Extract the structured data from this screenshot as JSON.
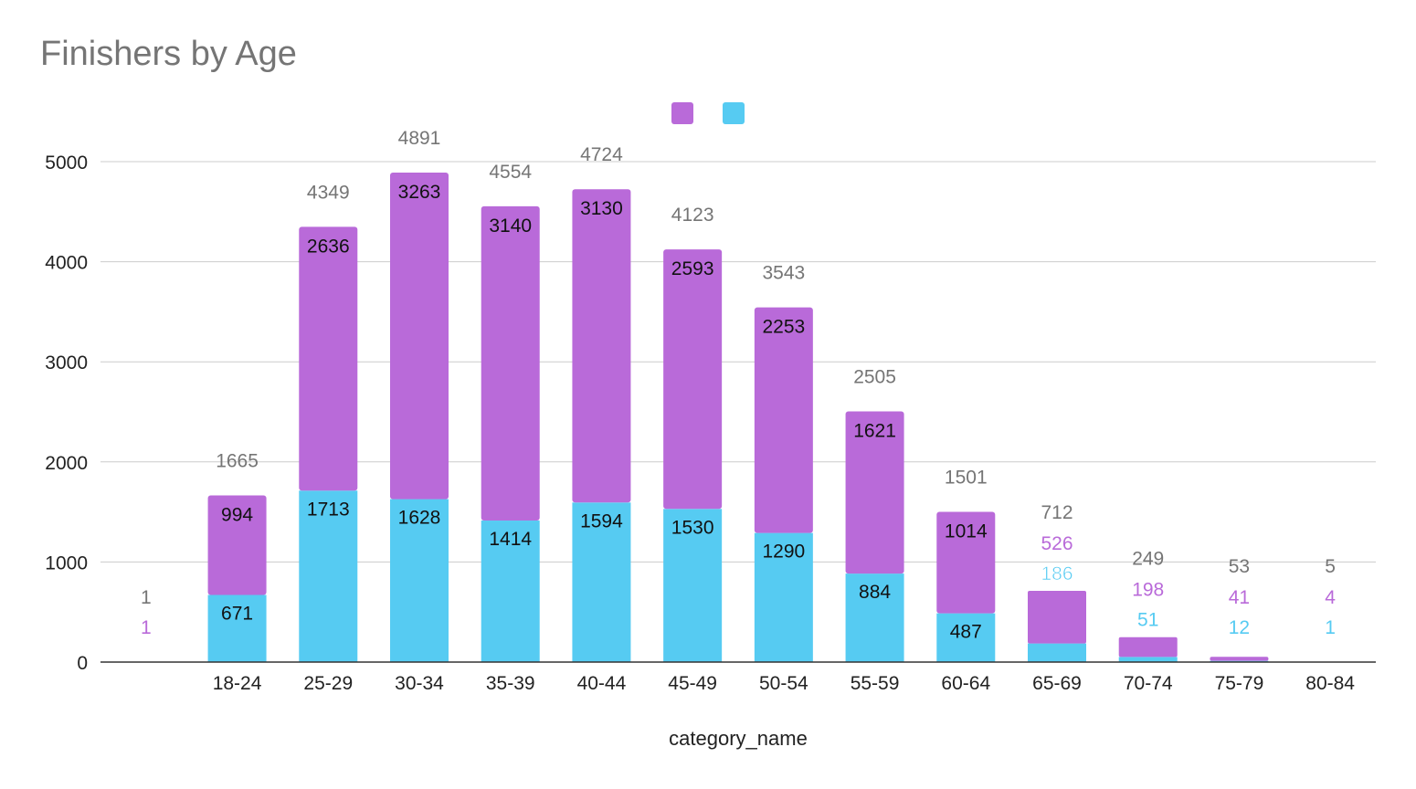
{
  "chart_data": {
    "type": "bar",
    "stacked": true,
    "title": "Finishers by Age",
    "xlabel": "category_name",
    "ylabel": "",
    "ylim": [
      0,
      5000
    ],
    "yticks": [
      0,
      1000,
      2000,
      3000,
      4000,
      5000
    ],
    "categories": [
      "",
      "18-24",
      "25-29",
      "30-34",
      "35-39",
      "40-44",
      "45-49",
      "50-54",
      "55-59",
      "60-64",
      "65-69",
      "70-74",
      "75-79",
      "80-84"
    ],
    "series": [
      {
        "values": [
          0,
          671,
          1713,
          1628,
          1414,
          1594,
          1530,
          1290,
          884,
          487,
          186,
          51,
          12,
          1
        ]
      },
      {
        "values": [
          1,
          994,
          2636,
          3263,
          3140,
          3130,
          2593,
          2253,
          1621,
          1014,
          526,
          198,
          41,
          4
        ]
      }
    ],
    "totals": [
      1,
      1665,
      4349,
      4891,
      4554,
      4724,
      4123,
      3543,
      2505,
      1501,
      712,
      249,
      53,
      5
    ],
    "colors": {
      "series_bottom": "#56cbf2",
      "series_top": "#b96ad9",
      "total_label": "#757575",
      "grid": "#cccccc",
      "axis": "#333333"
    },
    "grid": true,
    "legend_position": "top-center"
  }
}
